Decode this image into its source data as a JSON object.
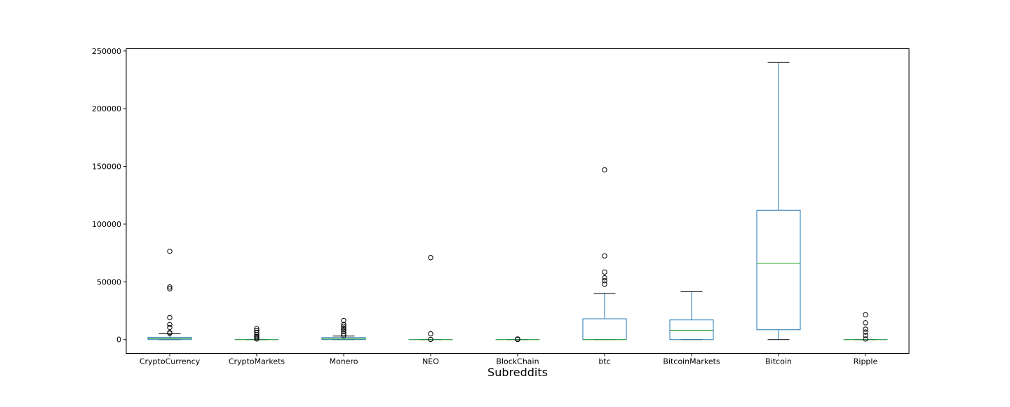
{
  "chart_data": {
    "type": "box",
    "title": "",
    "xlabel": "Subreddits",
    "ylabel": "",
    "ylim": [
      -12000,
      252000
    ],
    "yticks": [
      0,
      50000,
      100000,
      150000,
      200000,
      250000
    ],
    "ytick_labels": [
      "0",
      "50000",
      "100000",
      "150000",
      "200000",
      "250000"
    ],
    "grid": false,
    "legend": "none",
    "colors": {
      "box": "#1f77b4",
      "median": "#2ca02c",
      "flier": "#000000",
      "cap": "#000000"
    },
    "categories": [
      "CryptoCurrency",
      "CryptoMarkets",
      "Monero",
      "NEO",
      "BlockChain",
      "btc",
      "BitcoinMarkets",
      "Bitcoin",
      "Ripple"
    ],
    "boxes": [
      {
        "whislo": 0,
        "q1": 0,
        "med": 800,
        "q3": 2000,
        "whishi": 5000,
        "fliers": [
          5500,
          6000,
          10500,
          13000,
          19000,
          44000,
          45500,
          76500
        ]
      },
      {
        "whislo": 0,
        "q1": 0,
        "med": 0,
        "q3": 0,
        "whishi": 0,
        "fliers": [
          500,
          1500,
          2500,
          4000,
          6000,
          8000,
          9500
        ]
      },
      {
        "whislo": 0,
        "q1": 0,
        "med": 600,
        "q3": 1800,
        "whishi": 3000,
        "fliers": [
          3500,
          5000,
          7000,
          8500,
          10000,
          11500,
          13000,
          16500
        ]
      },
      {
        "whislo": 0,
        "q1": 0,
        "med": 0,
        "q3": 0,
        "whishi": 0,
        "fliers": [
          200,
          5000,
          71000
        ]
      },
      {
        "whislo": 0,
        "q1": 0,
        "med": 0,
        "q3": 0,
        "whishi": 0,
        "fliers": [
          100,
          300,
          500
        ]
      },
      {
        "whislo": 0,
        "q1": 0,
        "med": 0,
        "q3": 18000,
        "whishi": 40000,
        "fliers": [
          48000,
          51000,
          53500,
          58500,
          72500,
          147000
        ]
      },
      {
        "whislo": 0,
        "q1": 0,
        "med": 8000,
        "q3": 17000,
        "whishi": 41500,
        "fliers": []
      },
      {
        "whislo": 0,
        "q1": 8500,
        "med": 66000,
        "q3": 112000,
        "whishi": 240000,
        "fliers": []
      },
      {
        "whislo": 0,
        "q1": 0,
        "med": 0,
        "q3": 0,
        "whishi": 0,
        "fliers": [
          500,
          3500,
          6500,
          9000,
          14500,
          21500
        ]
      }
    ]
  }
}
